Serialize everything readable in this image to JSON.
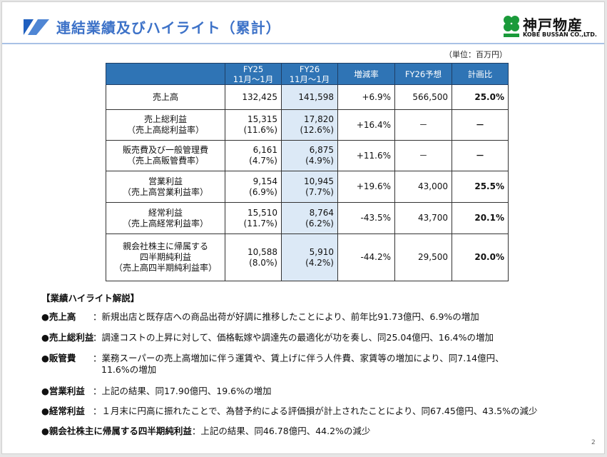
{
  "header": {
    "title": "連結業績及びハイライト（累計）",
    "brand_name": "神戸物産",
    "brand_sub": "KOBE BUSSAN CO.,LTD.",
    "brand_tag": "KOBE"
  },
  "unit": "（単位：百万円）",
  "table": {
    "columns": [
      "",
      "FY25\n11月～1月",
      "FY26\n11月～1月",
      "増減率",
      "FY26予想",
      "計画比"
    ],
    "col_fy25": [
      "FY25",
      "11月～1月"
    ],
    "col_fy26": [
      "FY26",
      "11月～1月"
    ],
    "rows": [
      {
        "label": [
          "売上高"
        ],
        "fy25": [
          "132,425"
        ],
        "fy26": [
          "141,598"
        ],
        "change": "+6.9%",
        "forecast": "566,500",
        "ratio": "25.0%"
      },
      {
        "label": [
          "売上総利益",
          "（売上高総利益率）"
        ],
        "fy25": [
          "15,315",
          "(11.6%)"
        ],
        "fy26": [
          "17,820",
          "(12.6%)"
        ],
        "change": "+16.4%",
        "forecast": "－",
        "ratio": "－"
      },
      {
        "label": [
          "販売費及び一般管理費",
          "（売上高販管費率）"
        ],
        "fy25": [
          "6,161",
          "(4.7%)"
        ],
        "fy26": [
          "6,875",
          "(4.9%)"
        ],
        "change": "+11.6%",
        "forecast": "－",
        "ratio": "－"
      },
      {
        "label": [
          "営業利益",
          "（売上高営業利益率）"
        ],
        "fy25": [
          "9,154",
          "(6.9%)"
        ],
        "fy26": [
          "10,945",
          "(7.7%)"
        ],
        "change": "+19.6%",
        "forecast": "43,000",
        "ratio": "25.5%"
      },
      {
        "label": [
          "経常利益",
          "（売上高経常利益率）"
        ],
        "fy25": [
          "15,510",
          "(11.7%)"
        ],
        "fy26": [
          "8,764",
          "(6.2%)"
        ],
        "change": "-43.5%",
        "forecast": "43,700",
        "ratio": "20.1%"
      },
      {
        "label": [
          "親会社株主に帰属する",
          "四半期純利益",
          "（売上高四半期純利益率）"
        ],
        "fy25": [
          "10,588",
          "(8.0%)"
        ],
        "fy26": [
          "5,910",
          "(4.2%)"
        ],
        "change": "-44.2%",
        "forecast": "29,500",
        "ratio": "20.0%"
      }
    ]
  },
  "notes": {
    "heading": "【業績ハイライト解説】",
    "items": [
      {
        "key": "●売上高",
        "text": "：新規出店と既存店への商品出荷が好調に推移したことにより、前年比91.73億円、6.9%の増加"
      },
      {
        "key": "●売上総利益",
        "text": "：調達コストの上昇に対して、価格転嫁や調達先の最適化が功を奏し、同25.04億円、16.4%の増加"
      },
      {
        "key": "●販管費",
        "text": "：業務スーパーの売上高増加に伴う運賃や、賃上げに伴う人件費、家賃等の増加により、同7.14億円、",
        "text2": "11.6%の増加"
      },
      {
        "key": "●営業利益",
        "text": "：上記の結果、同17.90億円、19.6%の増加"
      },
      {
        "key": "●経常利益",
        "text": "：１月末に円高に振れたことで、為替予約による評価損が計上されたことにより、同67.45億円、43.5%の減少"
      },
      {
        "key": "●親会社株主に帰属する四半期純利益",
        "text": "：上記の結果、同46.78億円、44.2%の減少"
      }
    ]
  },
  "page_number": "2",
  "colors": {
    "title": "#3d72c8",
    "header_bg": "#2f74b5",
    "fy26_bg": "#dce9f6",
    "logo_green": "#1a9a3a"
  }
}
